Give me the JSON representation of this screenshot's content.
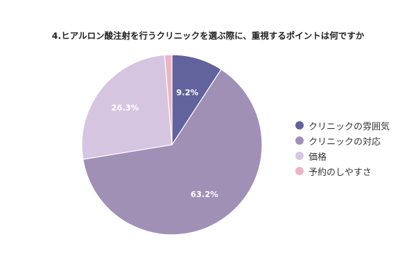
{
  "chart_data": {
    "type": "pie",
    "title": "4.ヒアルロン酸注射を行うクリニックを選ぶ際に、重視するポイントは何ですか",
    "categories": [
      "クリニックの雰囲気",
      "クリニックの対応",
      "価格",
      "予約のしやすさ"
    ],
    "values": [
      9.2,
      63.2,
      26.3,
      1.3
    ],
    "value_labels": [
      "9.2%",
      "63.2%",
      "26.3%",
      ""
    ],
    "colors": [
      "#62629c",
      "#a190b6",
      "#d6c5e0",
      "#e9b6c6"
    ],
    "start_angle": "top (12 o'clock)",
    "direction": "clockwise",
    "legend_position": "right"
  }
}
